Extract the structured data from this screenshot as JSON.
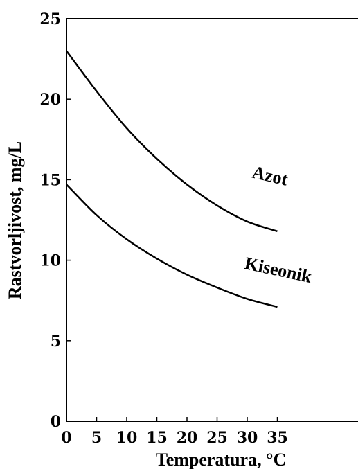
{
  "chart_data": {
    "type": "line",
    "title": "",
    "xlabel": "Temperatura, °C",
    "ylabel": "Rastvorljivost, mg/L",
    "xlim": [
      0,
      35
    ],
    "ylim": [
      0,
      25
    ],
    "x_ticks": [
      0,
      5,
      10,
      15,
      20,
      25,
      30,
      35
    ],
    "y_ticks": [
      0,
      5,
      10,
      15,
      20,
      25
    ],
    "grid": false,
    "legend": "none",
    "series": [
      {
        "name": "Azot",
        "x": [
          0,
          5,
          10,
          15,
          20,
          25,
          30,
          35
        ],
        "values": [
          23.0,
          20.5,
          18.2,
          16.3,
          14.7,
          13.4,
          12.4,
          11.8
        ]
      },
      {
        "name": "Kiseonik",
        "x": [
          0,
          5,
          10,
          15,
          20,
          25,
          30,
          35
        ],
        "values": [
          14.7,
          12.8,
          11.3,
          10.1,
          9.1,
          8.3,
          7.6,
          7.1
        ]
      }
    ],
    "colors": {
      "line": "#000000",
      "axis": "#000000",
      "background": "#ffffff"
    }
  }
}
